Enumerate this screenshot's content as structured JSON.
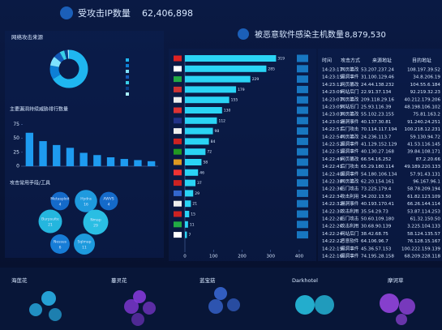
{
  "header": {
    "attacked_ip": {
      "label": "受攻击IP数量",
      "value": "62,406,898"
    },
    "infected_hosts": {
      "label": "被恶意软件感染主机数量",
      "value": "8,879,530"
    }
  },
  "chart_data": [
    {
      "type": "pie",
      "title": "网络攻击来源",
      "values": [
        66,
        12,
        8,
        6,
        4,
        3,
        1
      ],
      "colors": [
        "#1fb6f0",
        "#0d7fd6",
        "#7fe3ff",
        "#125ab8",
        "#3ad0e8",
        "#0b3f8a",
        "#a8f0ff"
      ]
    },
    {
      "type": "bar",
      "title": "主要漏洞持续威胁排行数量",
      "categories": [
        null,
        null,
        null,
        null,
        null,
        null,
        null,
        null,
        null,
        null
      ],
      "values": [
        60,
        45,
        38,
        33,
        24,
        20,
        16,
        13,
        11,
        9
      ],
      "ylim": [
        0,
        80
      ],
      "yticks": [
        0,
        25,
        50,
        75
      ],
      "color": "#1e9bf0"
    },
    {
      "type": "bubble",
      "title": "攻击常用手段/工具",
      "categories": [
        "Metasploit",
        "Hydra",
        "AWVS",
        "Burpsuite",
        "Nmap",
        "Nessus",
        "Sqlmap"
      ],
      "values": [
        4,
        16,
        4,
        21,
        29,
        6,
        11
      ],
      "colors": [
        "#1673d8",
        "#21a8f0",
        "#1673d8",
        "#28c8f0",
        "#2fd0f5",
        "#1a88e8",
        "#20a8ee"
      ]
    },
    {
      "type": "hbar",
      "categories": [
        null,
        null,
        null,
        null,
        null,
        null,
        null,
        null,
        null,
        null,
        null,
        null,
        null,
        null,
        null,
        null,
        null,
        null
      ],
      "values": [
        319,
        285,
        229,
        179,
        155,
        130,
        112,
        98,
        84,
        72,
        58,
        46,
        37,
        29,
        21,
        15,
        11,
        7
      ],
      "xlim": [
        0,
        420
      ],
      "xticks": [
        0,
        100,
        200,
        300,
        400
      ],
      "color": "#2ad4f5"
    }
  ],
  "table": {
    "columns": [
      "时间",
      "攻击方式",
      "来源地址",
      "目的地址"
    ],
    "rows": [
      [
        "14:23:17",
        "网页篡改",
        "53.207.237.24",
        "108.197.39.52"
      ],
      [
        "14:23:15",
        "漏洞事件",
        "31.100.129.46",
        "34.8.206.19"
      ],
      [
        "14:23:12",
        "网页篡改",
        "24.44.138.232",
        "104.55.6.184"
      ],
      [
        "14:23:09",
        "网站后门",
        "22.91.37.134",
        "92.219.32.23"
      ],
      [
        "14:23:07",
        "网页篡改",
        "209.118.29.16",
        "40.212.179.206"
      ],
      [
        "14:23:05",
        "网站后门",
        "25.93.116.39",
        "48.198.106.102"
      ],
      [
        "14:23:03",
        "网页篡改",
        "55.102.23.155",
        "75.81.163.2"
      ],
      [
        "14:23:01",
        "漏洞事件",
        "40.137.30.81",
        "91.240.24.251"
      ],
      [
        "14:22:57",
        "后门攻击",
        "70.114.117.194",
        "100.218.12.231"
      ],
      [
        "14:22:54",
        "网页篡改",
        "24.236.113.7",
        "59.130.94.72"
      ],
      [
        "14:22:52",
        "漏洞事件",
        "41.129.152.129",
        "41.53.116.145"
      ],
      [
        "14:22:51",
        "漏洞事件",
        "40.130.27.168",
        "39.84.108.171"
      ],
      [
        "14:22:49",
        "网页篡改",
        "66.54.16.252",
        "87.2.20.66"
      ],
      [
        "14:22:41",
        "后门攻击",
        "65.29.180.114",
        "49.189.220.133"
      ],
      [
        "14:22:40",
        "漏洞事件",
        "54.180.106.134",
        "57.91.43.131"
      ],
      [
        "14:22:38",
        "网页篡改",
        "62.20.154.161",
        "96.167.96.1"
      ],
      [
        "14:22:36",
        "后门攻击",
        "73.225.179.4",
        "58.78.209.194"
      ],
      [
        "14:22:34",
        "攻击利用",
        "34.202.13.50",
        "61.82.123.109"
      ],
      [
        "14:22:32",
        "漏洞事件",
        "40.193.170.41",
        "66.26.144.114"
      ],
      [
        "14:22:30",
        "攻击利用",
        "35.54.29.73",
        "53.87.114.253"
      ],
      [
        "14:22:28",
        "后门攻击",
        "50.60.109.180",
        "61.32.150.50"
      ],
      [
        "14:22:26",
        "攻击利用",
        "30.68.90.139",
        "3.225.104.133"
      ],
      [
        "14:22:24",
        "网站后门",
        "38.42.68.75",
        "58.124.135.57"
      ],
      [
        "14:22:22",
        "恶意软件",
        "64.106.96.7",
        "76.128.15.167"
      ],
      [
        "14:22:19",
        "漏洞事件",
        "45.36.57.153",
        "100.222.159.139"
      ],
      [
        "14:22:16",
        "漏洞事件",
        "74.195.28.158",
        "68.209.228.118"
      ]
    ]
  },
  "apt_groups": [
    "海莲花",
    "蔓灵花",
    "蓝宝菇",
    "Darkhotel",
    "摩诃草"
  ]
}
